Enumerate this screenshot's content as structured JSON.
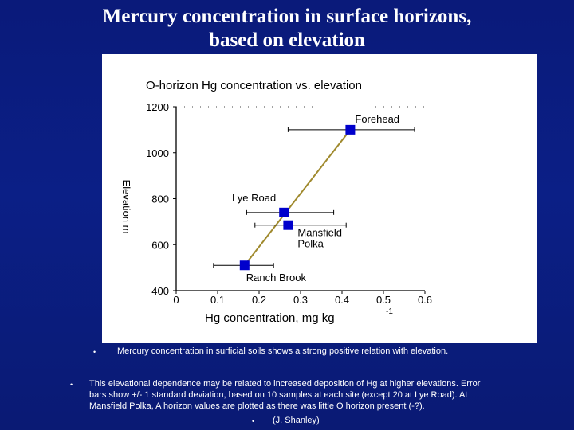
{
  "slide": {
    "title_line1": "Mercury concentration in surface horizons,",
    "title_line2": "based on elevation"
  },
  "chart_data": {
    "type": "line",
    "title": "O-horizon Hg concentration vs.  elevation",
    "xlabel": "Hg concentration, mg kg",
    "xlabel_superscript": "-1",
    "ylabel": "Elevation m",
    "xlim": [
      0,
      0.6
    ],
    "ylim": [
      400,
      1200
    ],
    "xticks": [
      0,
      0.1,
      0.2,
      0.3,
      0.4,
      0.5,
      0.6
    ],
    "yticks": [
      400,
      600,
      800,
      1000,
      1200
    ],
    "xtick_labels": [
      "0",
      "0.1",
      "0.2",
      "0.3",
      "0.4",
      "0.5",
      "0.6"
    ],
    "ytick_labels": [
      "400",
      "600",
      "800",
      "1000",
      "1200"
    ],
    "grid": false,
    "marker_color": "#0000cc",
    "line_color": "#a08a2e",
    "points": [
      {
        "label": "Ranch Brook",
        "x": 0.165,
        "y": 510,
        "xerr_low": 0.09,
        "xerr_high": 0.235
      },
      {
        "label": "Lye Road",
        "x": 0.26,
        "y": 740,
        "xerr_low": 0.17,
        "xerr_high": 0.38
      },
      {
        "label": "Mansfield\nPolka",
        "x": 0.27,
        "y": 685,
        "xerr_low": 0.19,
        "xerr_high": 0.41
      },
      {
        "label": "Forehead",
        "x": 0.42,
        "y": 1100,
        "xerr_low": 0.27,
        "xerr_high": 0.575
      }
    ],
    "fit_line": {
      "x1": 0.165,
      "y1": 510,
      "x2": 0.42,
      "y2": 1100
    }
  },
  "captions": {
    "first": "Mercury concentration in surficial soils shows a strong positive relation with elevation.",
    "second": "This elevational dependence may be related to increased deposition of Hg at higher elevations. Error bars show +/- 1 standard deviation, based on 10 samples at each site (except 20 at Lye Road). At Mansfield Polka, A horizon values are plotted as there was little O horizon present (-?).",
    "credit": "(J. Shanley)",
    "bullet": "•"
  }
}
